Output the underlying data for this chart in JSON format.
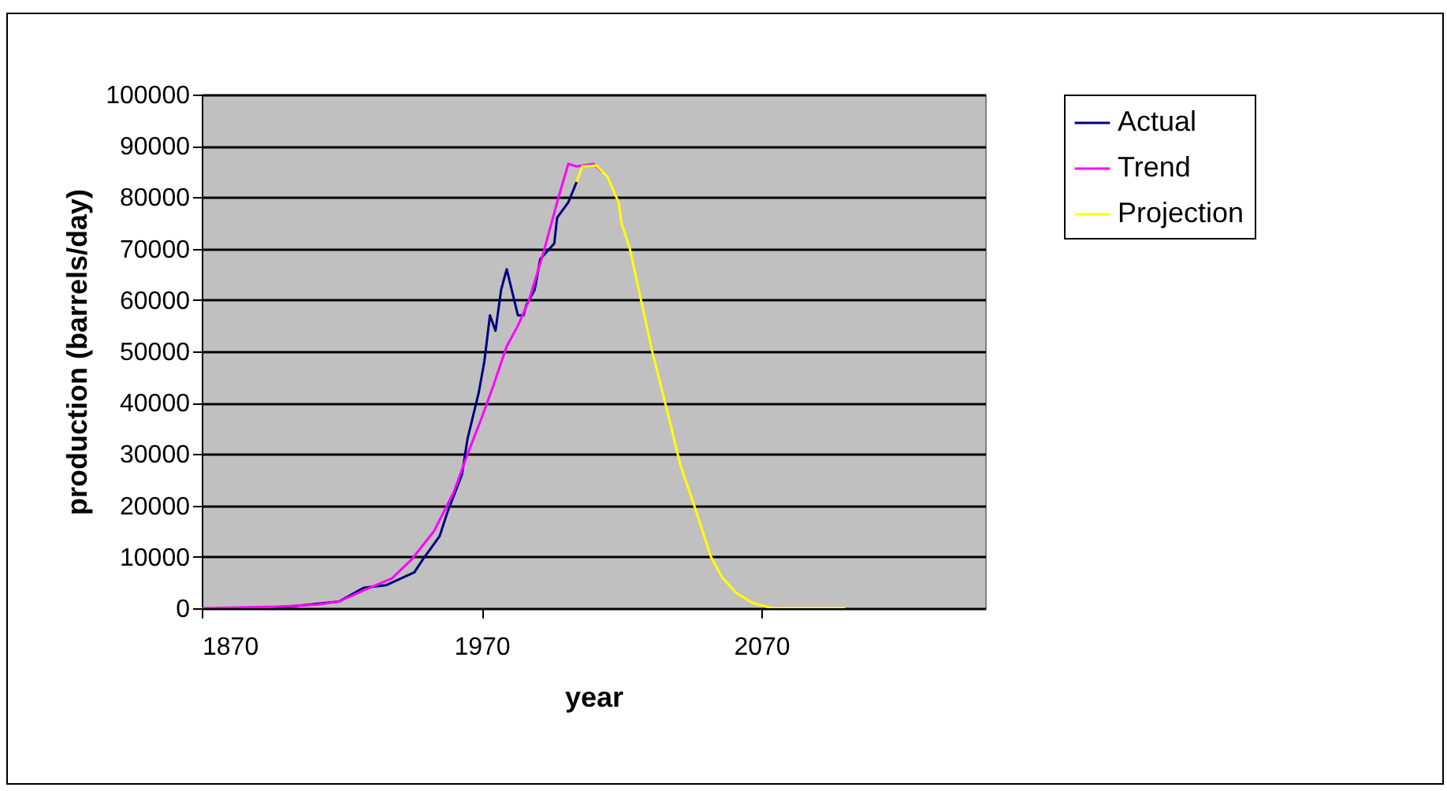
{
  "chart_data": {
    "type": "line",
    "xlabel": "year",
    "ylabel": "production (barrels/day)",
    "xlim": [
      1870,
      2150
    ],
    "xticks": [
      1870,
      1970,
      2070
    ],
    "ylim": [
      0,
      100000
    ],
    "yticks": [
      0,
      10000,
      20000,
      30000,
      40000,
      50000,
      60000,
      70000,
      80000,
      90000,
      100000
    ],
    "grid": "y",
    "legend": "right",
    "marker": "none",
    "line_style": "solid",
    "series": [
      {
        "name": "Actual",
        "color": "#000080",
        "x": [
          1896,
          1919,
          1928,
          1936,
          1942,
          1946,
          1949,
          1955,
          1958,
          1963,
          1965,
          1969,
          1971,
          1973,
          1975,
          1977,
          1979,
          1983,
          1985,
          1986,
          1989,
          1991,
          1996,
          1997,
          2001,
          2004
        ],
        "values": [
          0,
          1300,
          4000,
          4500,
          6000,
          7000,
          9500,
          14000,
          19000,
          26000,
          33000,
          42000,
          48000,
          57000,
          54000,
          62000,
          66000,
          57000,
          57000,
          59000,
          62000,
          68000,
          71000,
          76000,
          79000,
          83000
        ]
      },
      {
        "name": "Trend",
        "color": "#ff00ff",
        "x": [
          1870,
          1897,
          1911,
          1919,
          1928,
          1938,
          1945,
          1953,
          1960,
          1965,
          1970,
          1974,
          1979,
          1983,
          1987,
          1992,
          1997,
          2001,
          2004,
          2010,
          2013
        ],
        "values": [
          0,
          300,
          700,
          1300,
          3500,
          5800,
          9500,
          15000,
          22500,
          30000,
          37000,
          43000,
          51000,
          55000,
          60000,
          69000,
          79000,
          86500,
          86000,
          86500,
          85000
        ]
      },
      {
        "name": "Projection",
        "color": "#ffff00",
        "x": [
          2004,
          2006,
          2011,
          2015,
          2019,
          2020,
          2023,
          2027,
          2031,
          2037,
          2041,
          2046,
          2052,
          2056,
          2061,
          2067,
          2074,
          2100
        ],
        "values": [
          83000,
          86000,
          86200,
          84000,
          79000,
          75000,
          70000,
          60000,
          50000,
          37000,
          28000,
          20000,
          10000,
          6000,
          3000,
          1000,
          0,
          0
        ]
      }
    ]
  }
}
